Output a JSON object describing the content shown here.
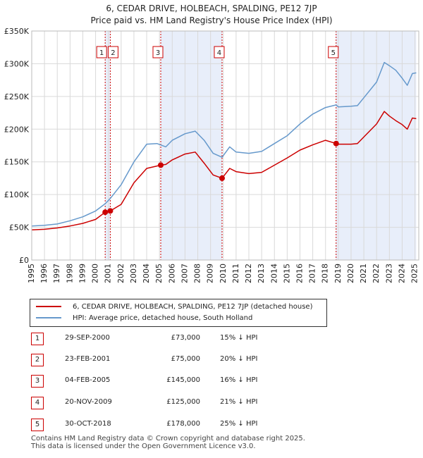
{
  "title_line1": "6, CEDAR DRIVE, HOLBEACH, SPALDING, PE12 7JP",
  "title_line2": "Price paid vs. HM Land Registry's House Price Index (HPI)",
  "colors": {
    "property": "#cc0000",
    "hpi": "#6699cc",
    "shade": "#e8eefa",
    "grid": "#d9d9d9"
  },
  "legend": {
    "property_label": "6, CEDAR DRIVE, HOLBEACH, SPALDING, PE12 7JP (detached house)",
    "hpi_label": "HPI: Average price, detached house, South Holland"
  },
  "sales": [
    {
      "num": "1",
      "date": "29-SEP-2000",
      "price": "£73,000",
      "hpi": "15% ↓ HPI"
    },
    {
      "num": "2",
      "date": "23-FEB-2001",
      "price": "£75,000",
      "hpi": "20% ↓ HPI"
    },
    {
      "num": "3",
      "date": "04-FEB-2005",
      "price": "£145,000",
      "hpi": "16% ↓ HPI"
    },
    {
      "num": "4",
      "date": "20-NOV-2009",
      "price": "£125,000",
      "hpi": "21% ↓ HPI"
    },
    {
      "num": "5",
      "date": "30-OCT-2018",
      "price": "£178,000",
      "hpi": "25% ↓ HPI"
    }
  ],
  "footer_line1": "Contains HM Land Registry data © Crown copyright and database right 2025.",
  "footer_line2": "This data is licensed under the Open Government Licence v3.0.",
  "chart_data": {
    "type": "line",
    "title": "6, CEDAR DRIVE, HOLBEACH, SPALDING, PE12 7JP — Price paid vs. HM Land Registry's House Price Index (HPI)",
    "xlim": [
      1995,
      2025.3
    ],
    "ylim": [
      0,
      350000
    ],
    "yticks": [
      0,
      50000,
      100000,
      150000,
      200000,
      250000,
      300000,
      350000
    ],
    "ytick_labels": [
      "£0",
      "£50K",
      "£100K",
      "£150K",
      "£200K",
      "£250K",
      "£300K",
      "£350K"
    ],
    "xticks": [
      1995,
      1996,
      1997,
      1998,
      1999,
      2000,
      2001,
      2002,
      2003,
      2004,
      2005,
      2006,
      2007,
      2008,
      2009,
      2010,
      2011,
      2012,
      2013,
      2014,
      2015,
      2016,
      2017,
      2018,
      2019,
      2020,
      2021,
      2022,
      2023,
      2024,
      2025
    ],
    "shaded_ranges": [
      [
        2000.75,
        2001.15
      ],
      [
        2005.1,
        2009.9
      ],
      [
        2018.8,
        2025.1
      ]
    ],
    "sale_points": [
      {
        "label": "1",
        "x": 2000.75,
        "y": 73000
      },
      {
        "label": "2",
        "x": 2001.15,
        "y": 75000
      },
      {
        "label": "3",
        "x": 2005.1,
        "y": 145000
      },
      {
        "label": "4",
        "x": 2009.9,
        "y": 125000
      },
      {
        "label": "5",
        "x": 2018.83,
        "y": 178000
      }
    ],
    "series": [
      {
        "name": "HPI: Average price, detached house, South Holland",
        "color": "#6699cc",
        "x": [
          1995,
          1996,
          1997,
          1998,
          1999,
          2000,
          2000.75,
          2001.15,
          2002,
          2003,
          2004,
          2004.8,
          2005.5,
          2006,
          2007,
          2007.8,
          2008.5,
          2009.2,
          2009.9,
          2010.5,
          2011,
          2012,
          2013,
          2014,
          2015,
          2016,
          2017,
          2018,
          2018.83,
          2019,
          2020,
          2020.5,
          2021,
          2022,
          2022.6,
          2023,
          2023.5,
          2024,
          2024.4,
          2024.8,
          2025.1
        ],
        "y": [
          52000,
          53000,
          55000,
          60000,
          66000,
          75000,
          86000,
          94000,
          115000,
          150000,
          177000,
          178000,
          173000,
          183000,
          193000,
          197000,
          183000,
          163000,
          157000,
          173000,
          165000,
          163000,
          166000,
          178000,
          190000,
          208000,
          223000,
          233000,
          237000,
          234000,
          235000,
          236000,
          248000,
          272000,
          302000,
          297000,
          290000,
          278000,
          267000,
          285000,
          286000
        ]
      },
      {
        "name": "6, CEDAR DRIVE, HOLBEACH, SPALDING, PE12 7JP (detached house)",
        "color": "#cc0000",
        "x": [
          1995,
          1996,
          1997,
          1998,
          1999,
          2000,
          2000.75,
          2001.15,
          2002,
          2003,
          2004,
          2005.1,
          2005.5,
          2006,
          2007,
          2007.8,
          2008.5,
          2009.2,
          2009.9,
          2010.5,
          2011,
          2012,
          2013,
          2014,
          2015,
          2016,
          2017,
          2018,
          2018.83,
          2019,
          2020,
          2020.5,
          2021,
          2022,
          2022.6,
          2023,
          2023.5,
          2024,
          2024.4,
          2024.8,
          2025.1
        ],
        "y": [
          46000,
          47000,
          49000,
          52000,
          56000,
          62000,
          73000,
          75000,
          85000,
          118000,
          140000,
          145000,
          146000,
          153000,
          162000,
          165000,
          148000,
          130000,
          125000,
          140000,
          135000,
          132000,
          134000,
          145000,
          156000,
          168000,
          176000,
          183000,
          178000,
          177000,
          177000,
          178000,
          188000,
          208000,
          227000,
          220000,
          213000,
          207000,
          200000,
          217000,
          216000
        ]
      }
    ]
  }
}
